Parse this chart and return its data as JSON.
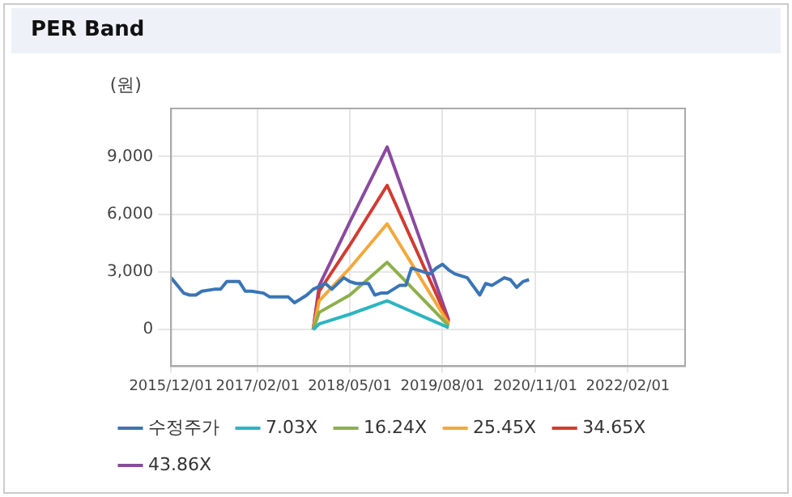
{
  "chart_data": {
    "type": "line",
    "title": "PER Band",
    "ylabel": "(원)",
    "xlim": [
      "2015-12-01",
      "2022-11-10"
    ],
    "xticks": [
      {
        "value": "2015-12-01",
        "label": "2015/12/01"
      },
      {
        "value": "2017-02-01",
        "label": "2017/02/01"
      },
      {
        "value": "2018-05-01",
        "label": "2018/05/01"
      },
      {
        "value": "2019-08-01",
        "label": "2019/08/01"
      },
      {
        "value": "2020-11-01",
        "label": "2020/11/01"
      },
      {
        "value": "2022-02-01",
        "label": "2022/02/01"
      }
    ],
    "ylim": [
      -1900,
      11500
    ],
    "yticks": [
      {
        "value": 0,
        "label": "0"
      },
      {
        "value": 3000,
        "label": "3,000"
      },
      {
        "value": 6000,
        "label": "6,000"
      },
      {
        "value": 9000,
        "label": "9,000"
      }
    ],
    "grid": true,
    "legend": "bottom",
    "marker": "none",
    "line_style": "solid",
    "series": [
      {
        "name": "수정주가",
        "color": "#3a75b5",
        "x": [
          "2015-12",
          "2016-02",
          "2016-03",
          "2016-04",
          "2016-05",
          "2016-07",
          "2016-08",
          "2016-09",
          "2016-11",
          "2016-12",
          "2017-01",
          "2017-03",
          "2017-04",
          "2017-07",
          "2017-08",
          "2017-09",
          "2017-10",
          "2017-11",
          "2018-01",
          "2018-02",
          "2018-04",
          "2018-05",
          "2018-06",
          "2018-08",
          "2018-09",
          "2018-10",
          "2018-11",
          "2019-01",
          "2019-02",
          "2019-03",
          "2019-04",
          "2019-06",
          "2019-07",
          "2019-08",
          "2019-09",
          "2019-10",
          "2019-12",
          "2020-02",
          "2020-03",
          "2020-04",
          "2020-06",
          "2020-07",
          "2020-08",
          "2020-09",
          "2020-10"
        ],
        "values": [
          2700,
          1900,
          1800,
          1800,
          2000,
          2100,
          2100,
          2500,
          2500,
          2000,
          2000,
          1900,
          1700,
          1700,
          1400,
          1600,
          1800,
          2100,
          2400,
          2100,
          2700,
          2500,
          2400,
          2400,
          1800,
          1900,
          1900,
          2300,
          2300,
          3200,
          3100,
          2900,
          3200,
          3400,
          3100,
          2900,
          2700,
          1800,
          2400,
          2300,
          2700,
          2600,
          2200,
          2500,
          2600
        ]
      },
      {
        "name": "7.03X",
        "color": "#2cb5c0",
        "x": [
          "2017-11",
          "2017-12",
          "2018-05",
          "2018-11",
          "2019-09"
        ],
        "values": [
          0,
          300,
          800,
          1500,
          100
        ]
      },
      {
        "name": "16.24X",
        "color": "#8db04a",
        "x": [
          "2017-11",
          "2017-12",
          "2018-05",
          "2018-11",
          "2019-09"
        ],
        "values": [
          0,
          900,
          1800,
          3500,
          200
        ]
      },
      {
        "name": "25.45X",
        "color": "#f2a93b",
        "x": [
          "2017-11",
          "2017-12",
          "2018-05",
          "2018-11",
          "2019-09"
        ],
        "values": [
          0,
          1500,
          3200,
          5500,
          300
        ]
      },
      {
        "name": "34.65X",
        "color": "#d03c32",
        "x": [
          "2017-11",
          "2017-12",
          "2018-05",
          "2018-11",
          "2019-09"
        ],
        "values": [
          0,
          2000,
          4400,
          7500,
          400
        ]
      },
      {
        "name": "43.86X",
        "color": "#8a4a9e",
        "x": [
          "2017-11",
          "2017-12",
          "2018-05",
          "2018-11",
          "2019-09"
        ],
        "values": [
          0,
          2300,
          5600,
          9500,
          500
        ]
      }
    ]
  }
}
